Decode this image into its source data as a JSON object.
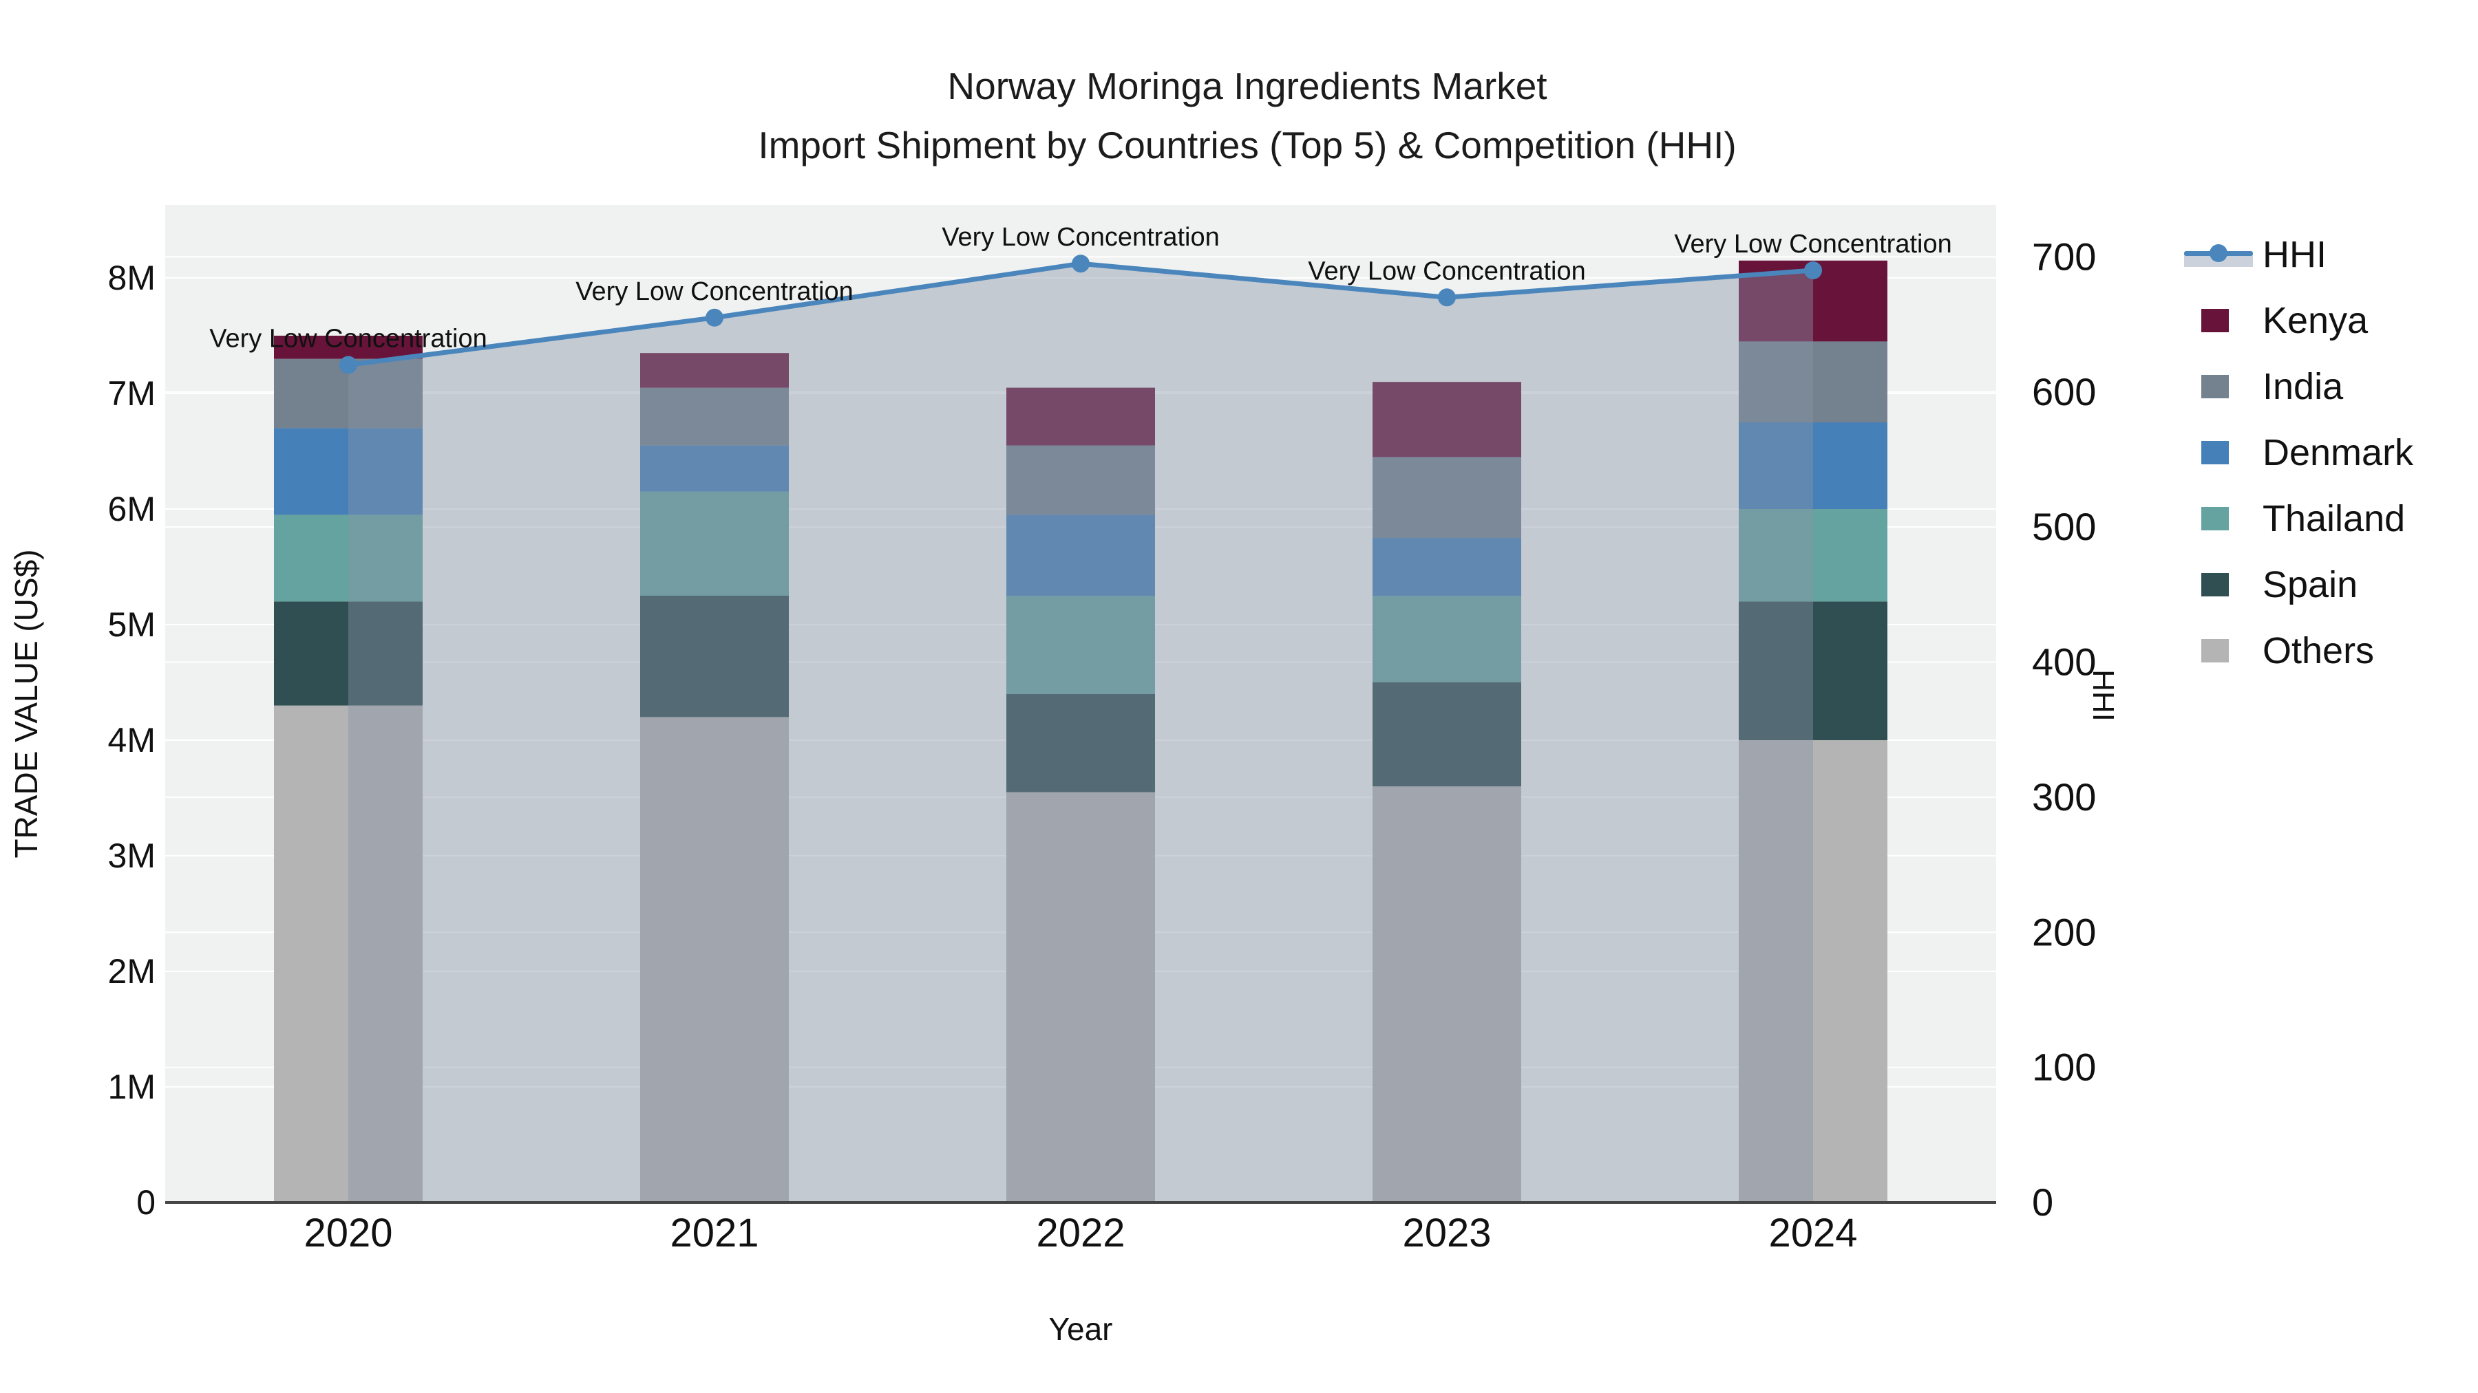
{
  "title": {
    "line1": "Norway Moringa Ingredients Market",
    "line2": "Import Shipment by Countries (Top 5) & Competition (HHI)"
  },
  "axes": {
    "x_label": "Year",
    "y_left_label": "TRADE VALUE (US$)",
    "y_right_label": "HHI",
    "y_left_ticks": [
      "0",
      "1M",
      "2M",
      "3M",
      "4M",
      "5M",
      "6M",
      "7M",
      "8M"
    ],
    "y_right_ticks": [
      "0",
      "100",
      "200",
      "300",
      "400",
      "500",
      "600",
      "700"
    ]
  },
  "chart_data": {
    "type": "bar",
    "subtype": "stacked-bars-with-line-overlay",
    "title": "Norway Moringa Ingredients Market — Import Shipment by Countries (Top 5) & Competition (HHI)",
    "categories": [
      "2020",
      "2021",
      "2022",
      "2023",
      "2024"
    ],
    "bar_value_unit": "millions US$ (trade value, left axis)",
    "series": [
      {
        "name": "Others",
        "color": "#b4b4b4",
        "values": [
          4.3,
          4.2,
          3.55,
          3.6,
          4.0
        ]
      },
      {
        "name": "Spain",
        "color": "#2f4f52",
        "values": [
          0.9,
          1.05,
          0.85,
          0.9,
          1.2
        ]
      },
      {
        "name": "Thailand",
        "color": "#64a3a0",
        "values": [
          0.75,
          0.9,
          0.85,
          0.75,
          0.8
        ]
      },
      {
        "name": "Denmark",
        "color": "#4680b8",
        "values": [
          0.75,
          0.4,
          0.7,
          0.5,
          0.75
        ]
      },
      {
        "name": "India",
        "color": "#74818f",
        "values": [
          0.6,
          0.5,
          0.6,
          0.7,
          0.7
        ]
      },
      {
        "name": "Kenya",
        "color": "#68143a",
        "values": [
          0.2,
          0.3,
          0.5,
          0.65,
          0.7
        ]
      }
    ],
    "bar_totals_millions": [
      7.5,
      7.35,
      7.05,
      7.1,
      8.15
    ],
    "line_series": {
      "name": "HHI",
      "axis": "right",
      "values": [
        620,
        655,
        695,
        670,
        690
      ],
      "color": "#4a86bc",
      "fill_color": "rgba(135,148,168,0.42)"
    },
    "point_annotations": [
      "Very Low Concentration",
      "Very Low Concentration",
      "Very Low Concentration",
      "Very Low Concentration",
      "Very Low Concentration"
    ],
    "xlabel": "Year",
    "ylabel_left": "TRADE VALUE (US$)",
    "ylabel_right": "HHI",
    "ylim_left_millions": [
      0,
      8.63
    ],
    "ylim_right": [
      0,
      738
    ],
    "grid": true,
    "legend_position": "right-outside"
  },
  "legend": {
    "items": [
      {
        "label": "HHI",
        "type": "line",
        "color": "#4a86bc"
      },
      {
        "label": "Kenya",
        "type": "swatch",
        "color": "#68143a"
      },
      {
        "label": "India",
        "type": "swatch",
        "color": "#74818f"
      },
      {
        "label": "Denmark",
        "type": "swatch",
        "color": "#4680b8"
      },
      {
        "label": "Thailand",
        "type": "swatch",
        "color": "#64a3a0"
      },
      {
        "label": "Spain",
        "type": "swatch",
        "color": "#2f4f52"
      },
      {
        "label": "Others",
        "type": "swatch",
        "color": "#b4b4b4"
      }
    ]
  },
  "colors": {
    "plot_background": "#f0f1f1",
    "gridline": "#ffffff",
    "axis_line": "#454545",
    "text": "#111111"
  }
}
